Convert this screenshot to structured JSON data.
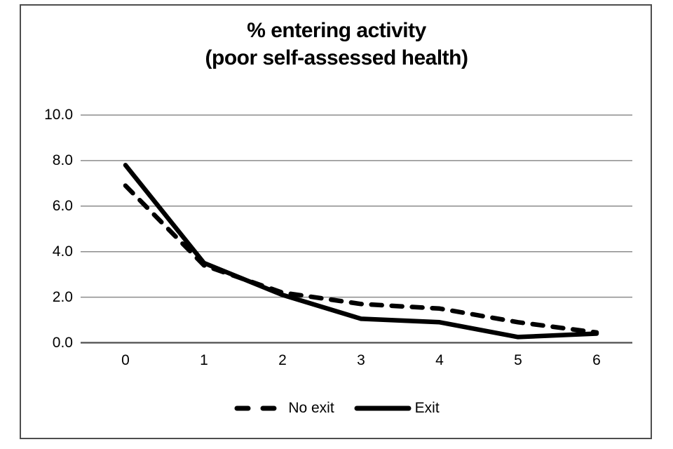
{
  "chart_data": {
    "type": "line",
    "title": "% entering activity (poor self-assessed health)",
    "title_lines": [
      "% entering activity",
      "(poor self-assessed health)"
    ],
    "xlabel": "",
    "ylabel": "",
    "x": [
      0,
      1,
      2,
      3,
      4,
      5,
      6
    ],
    "x_tick_labels": [
      "0",
      "1",
      "2",
      "3",
      "4",
      "5",
      "6"
    ],
    "ylim": [
      0,
      10
    ],
    "y_ticks": [
      0,
      2,
      4,
      6,
      8,
      10
    ],
    "y_tick_labels": [
      "0.0",
      "2.0",
      "4.0",
      "6.0",
      "8.0",
      "10.0"
    ],
    "grid": "horizontal-only",
    "legend_position": "bottom",
    "series": [
      {
        "name": "No exit",
        "line_style": "dashed",
        "color": "#000000",
        "values": [
          6.9,
          3.4,
          2.2,
          1.7,
          1.5,
          0.9,
          0.45
        ]
      },
      {
        "name": "Exit",
        "line_style": "solid",
        "color": "#000000",
        "values": [
          7.8,
          3.5,
          2.1,
          1.05,
          0.9,
          0.25,
          0.4
        ]
      }
    ]
  },
  "colors": {
    "frame_border": "#4d4d4d",
    "gridline": "#8c8c8c",
    "axis_line": "#4d4d4d",
    "series_stroke": "#000000",
    "background": "#ffffff",
    "text": "#000000"
  }
}
